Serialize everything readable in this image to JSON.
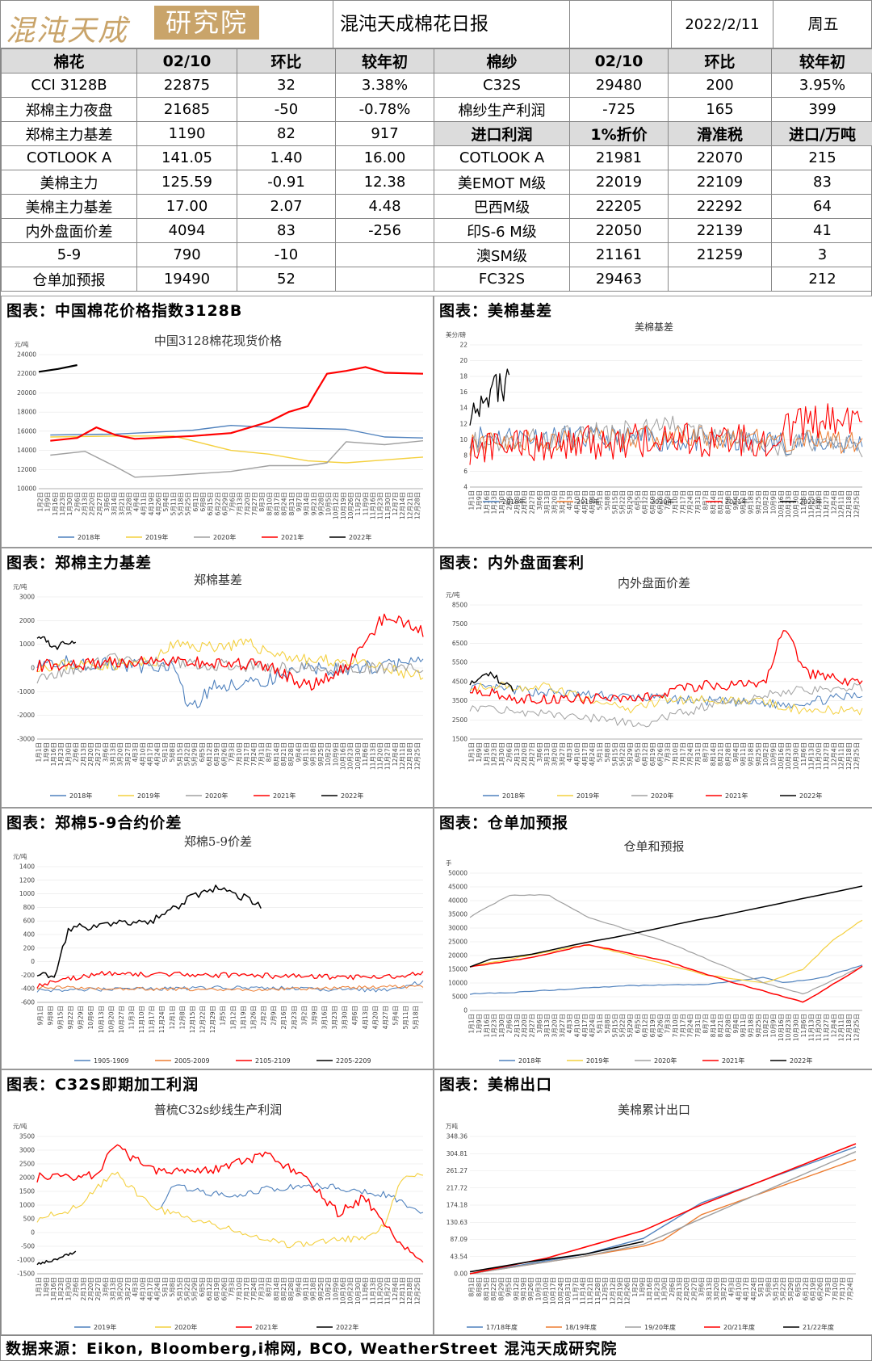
{
  "header": {
    "logo_text": "混沌天成",
    "logo_box": "研究院",
    "title": "混沌天成棉花日报",
    "date": "2022/2/11",
    "weekday": "周五"
  },
  "table": {
    "cotton_header": [
      "棉花",
      "02/10",
      "环比",
      "较年初"
    ],
    "yarn_header": [
      "棉纱",
      "02/10",
      "环比",
      "较年初"
    ],
    "import_header": [
      "进口利润",
      "1%折价",
      "滑准税",
      "进口/万吨"
    ],
    "cotton_rows": [
      [
        "CCI 3128B",
        "22875",
        "32",
        "3.38%"
      ],
      [
        "郑棉主力夜盘",
        "21685",
        "-50",
        "-0.78%"
      ],
      [
        "郑棉主力基差",
        "1190",
        "82",
        "917"
      ],
      [
        "COTLOOK A",
        "141.05",
        "1.40",
        "16.00"
      ],
      [
        "美棉主力",
        "125.59",
        "-0.91",
        "12.38"
      ],
      [
        "美棉主力基差",
        "17.00",
        "2.07",
        "4.48"
      ],
      [
        "内外盘面价差",
        "4094",
        "83",
        "-256"
      ],
      [
        "5-9",
        "790",
        "-10",
        ""
      ],
      [
        "仓单加预报",
        "19490",
        "52",
        ""
      ]
    ],
    "yarn_rows": [
      [
        "C32S",
        "29480",
        "200",
        "3.95%"
      ],
      [
        "棉纱生产利润",
        "-725",
        "165",
        "399"
      ]
    ],
    "import_rows": [
      [
        "COTLOOK A",
        "21981",
        "22070",
        "215"
      ],
      [
        "美EMOT M级",
        "22019",
        "22109",
        "83"
      ],
      [
        "巴西M级",
        "22205",
        "22292",
        "64"
      ],
      [
        "印S-6 M级",
        "22050",
        "22139",
        "41"
      ],
      [
        "澳SM级",
        "21161",
        "21259",
        "3"
      ],
      [
        "FC32S",
        "29463",
        "",
        "212"
      ]
    ]
  },
  "panels": [
    {
      "title": "图表：中国棉花价格指数3128B"
    },
    {
      "title": "图表：美棉基差"
    },
    {
      "title": "图表：郑棉主力基差"
    },
    {
      "title": "图表：内外盘面套利"
    },
    {
      "title": "图表：郑棉5-9合约价差"
    },
    {
      "title": "图表：仓单加预报"
    },
    {
      "title": "图表：C32S即期加工利润"
    },
    {
      "title": "图表：美棉出口"
    }
  ],
  "footer": "数据来源：Eikon, Bloomberg,i棉网, BCO, WeatherStreet 混沌天成研究院",
  "chart_data": [
    {
      "type": "line",
      "title": "中国3128棉花现货价格",
      "unit": "元/吨",
      "yticks": [
        10000,
        12000,
        14000,
        16000,
        18000,
        20000,
        22000,
        24000
      ],
      "xticks": [
        "1月2日",
        "1月9日",
        "1月16日",
        "1月23日",
        "1月30日",
        "2月6日",
        "2月13日",
        "2月20日",
        "2月27日",
        "3月6日",
        "3月14日",
        "3月21日",
        "3月28日",
        "4月4日",
        "4月11日",
        "4月19日",
        "4月26日",
        "5月4日",
        "5月11日",
        "5月18日",
        "5月25日",
        "6月1日",
        "6月8日",
        "6月15日",
        "6月22日",
        "6月29日",
        "7月6日",
        "7月13日",
        "7月20日",
        "7月27日",
        "8月3日",
        "8月10日",
        "8月17日",
        "8月24日",
        "8月31日",
        "9月7日",
        "9月14日",
        "9月21日",
        "9月28日",
        "10月5日",
        "10月12日",
        "10月19日",
        "10月26日",
        "11月2日",
        "11月9日",
        "11月16日",
        "11月23日",
        "11月30日",
        "12月7日",
        "12月14日",
        "12月21日",
        "12月28日"
      ],
      "series": [
        {
          "name": "2018年",
          "color": "#4f81bd",
          "points": [
            [
              0.03,
              15600
            ],
            [
              0.2,
              15700
            ],
            [
              0.4,
              16100
            ],
            [
              0.5,
              16600
            ],
            [
              0.6,
              16400
            ],
            [
              0.8,
              16200
            ],
            [
              0.9,
              15400
            ],
            [
              1,
              15300
            ]
          ]
        },
        {
          "name": "2019年",
          "color": "#f4d03f",
          "points": [
            [
              0.03,
              15400
            ],
            [
              0.2,
              15500
            ],
            [
              0.35,
              15500
            ],
            [
              0.4,
              15000
            ],
            [
              0.5,
              14000
            ],
            [
              0.6,
              13600
            ],
            [
              0.7,
              12900
            ],
            [
              0.8,
              12700
            ],
            [
              0.9,
              13000
            ],
            [
              1,
              13300
            ]
          ]
        },
        {
          "name": "2020年",
          "color": "#a0a0a0",
          "points": [
            [
              0.03,
              13500
            ],
            [
              0.12,
              13900
            ],
            [
              0.2,
              12300
            ],
            [
              0.25,
              11200
            ],
            [
              0.35,
              11400
            ],
            [
              0.5,
              11800
            ],
            [
              0.6,
              12400
            ],
            [
              0.7,
              12400
            ],
            [
              0.75,
              12700
            ],
            [
              0.8,
              14900
            ],
            [
              0.9,
              14600
            ],
            [
              1,
              15000
            ]
          ]
        },
        {
          "name": "2021年",
          "color": "#ff0000",
          "points": [
            [
              0.03,
              15000
            ],
            [
              0.1,
              15300
            ],
            [
              0.15,
              16400
            ],
            [
              0.2,
              15600
            ],
            [
              0.25,
              15200
            ],
            [
              0.3,
              15300
            ],
            [
              0.4,
              15500
            ],
            [
              0.5,
              15800
            ],
            [
              0.6,
              17000
            ],
            [
              0.65,
              18000
            ],
            [
              0.7,
              18600
            ],
            [
              0.72,
              20000
            ],
            [
              0.75,
              22000
            ],
            [
              0.8,
              22300
            ],
            [
              0.85,
              22700
            ],
            [
              0.9,
              22100
            ],
            [
              1,
              22000
            ]
          ]
        },
        {
          "name": "2022年",
          "color": "#000000",
          "points": [
            [
              0.0,
              22200
            ],
            [
              0.05,
              22500
            ],
            [
              0.1,
              22900
            ]
          ]
        }
      ]
    },
    {
      "type": "line",
      "title": "美棉基差",
      "unit": "美分/磅",
      "yticks": [
        4,
        6,
        8,
        10,
        12,
        14,
        16,
        18,
        20,
        22
      ],
      "series_names": [
        "2018年",
        "2019年",
        "2020年",
        "2021年",
        "2022年"
      ],
      "colors": [
        "#4f81bd",
        "#ed7d31",
        "#a0a0a0",
        "#ff0000",
        "#000000"
      ]
    },
    {
      "type": "line",
      "title": "郑棉基差",
      "unit": "元/吨",
      "yticks": [
        -3000,
        -2000,
        -1000,
        0,
        1000,
        2000,
        3000
      ],
      "series_names": [
        "2018年",
        "2019年",
        "2020年",
        "2021年",
        "2022年"
      ],
      "colors": [
        "#4f81bd",
        "#f4d03f",
        "#a0a0a0",
        "#ff0000",
        "#000000"
      ]
    },
    {
      "type": "line",
      "title": "内外盘面价差",
      "unit": "元/吨",
      "yticks": [
        1500,
        2500,
        3500,
        4500,
        5500,
        6500,
        7500,
        8500
      ],
      "series_names": [
        "2018年",
        "2019年",
        "2020年",
        "2021年",
        "2022年"
      ],
      "colors": [
        "#4f81bd",
        "#f4d03f",
        "#a0a0a0",
        "#ff0000",
        "#000000"
      ]
    },
    {
      "type": "line",
      "title": "郑棉5-9价差",
      "unit": "元/吨",
      "yticks": [
        -600,
        -400,
        -200,
        0,
        200,
        400,
        600,
        800,
        1000,
        1200,
        1400
      ],
      "series_names": [
        "1905-1909",
        "2005-2009",
        "2105-2109",
        "2205-2209"
      ],
      "colors": [
        "#4f81bd",
        "#ed7d31",
        "#ff0000",
        "#000000"
      ]
    },
    {
      "type": "line",
      "title": "仓单和预报",
      "unit": "手",
      "yticks": [
        0,
        5000,
        10000,
        15000,
        20000,
        25000,
        30000,
        35000,
        40000,
        45000,
        50000
      ],
      "series_names": [
        "2018年",
        "2019年",
        "2020年",
        "2021年",
        "2022年"
      ],
      "colors": [
        "#4f81bd",
        "#f4d03f",
        "#a0a0a0",
        "#ff0000",
        "#000000"
      ]
    },
    {
      "type": "line",
      "title": "普梳C32s纱线生产利润",
      "unit": "元/吨",
      "yticks": [
        -1500,
        -1000,
        -500,
        0,
        500,
        1000,
        1500,
        2000,
        2500,
        3000,
        3500
      ],
      "series_names": [
        "2019年",
        "2020年",
        "2021年",
        "2022年"
      ],
      "colors": [
        "#4f81bd",
        "#f4d03f",
        "#ff0000",
        "#000000"
      ]
    },
    {
      "type": "line",
      "title": "美棉累计出口",
      "unit": "万吨",
      "yticks": [
        "0.00",
        "43.54",
        "87.09",
        "130.63",
        "174.18",
        "217.72",
        "261.27",
        "304.81",
        "348.36"
      ],
      "series_names": [
        "17/18年度",
        "18/19年度",
        "19/20年度",
        "20/21年度",
        "21/22年度"
      ],
      "colors": [
        "#4f81bd",
        "#ed7d31",
        "#a0a0a0",
        "#ff0000",
        "#000000"
      ]
    }
  ]
}
